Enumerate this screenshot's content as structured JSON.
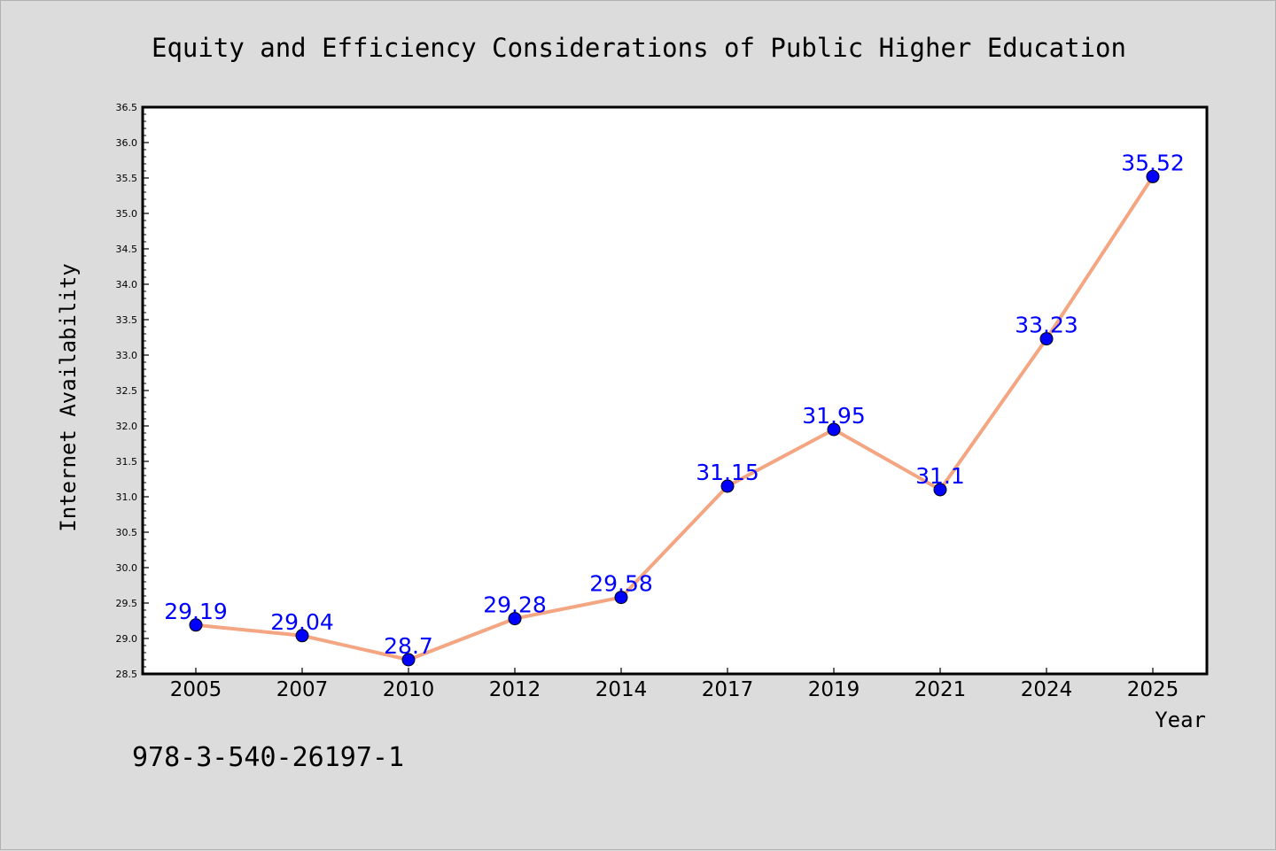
{
  "chart_data": {
    "type": "line",
    "title": "Equity and Efficiency Considerations of Public Higher Education",
    "xlabel": "Year",
    "ylabel": "Internet Availability",
    "categories": [
      "2005",
      "2007",
      "2010",
      "2012",
      "2014",
      "2017",
      "2019",
      "2021",
      "2024",
      "2025"
    ],
    "series": [
      {
        "values": [
          29.19,
          29.04,
          28.7,
          29.28,
          29.58,
          31.15,
          31.95,
          31.1,
          33.23,
          35.52
        ],
        "data_labels": [
          "29.19",
          "29.04",
          "28.7",
          "29.28",
          "29.58",
          "31.15",
          "31.95",
          "31.1",
          "33.23",
          "35.52"
        ]
      }
    ],
    "ylim": [
      28.5,
      36.5
    ],
    "yticks": [
      "28.5",
      "29.0",
      "29.5",
      "30.0",
      "30.5",
      "31.0",
      "31.5",
      "32.0",
      "32.5",
      "33.0",
      "33.5",
      "34.0",
      "34.5",
      "35.0",
      "35.5",
      "36.0",
      "36.5"
    ],
    "grid": false,
    "legend": "none",
    "colors": {
      "line": "#f4a582",
      "marker": "#0000ff",
      "label": "#0000ff",
      "background": "#dcdcdc",
      "plot_background": "#ffffff"
    }
  },
  "footnote": "978-3-540-26197-1"
}
